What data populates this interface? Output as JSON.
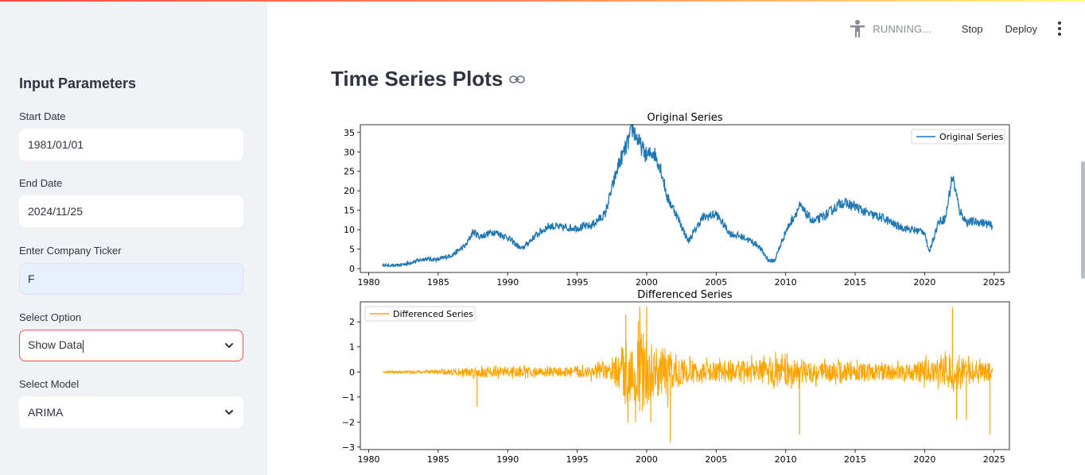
{
  "sidebar": {
    "title": "Input Parameters",
    "start_date": {
      "label": "Start Date",
      "value": "1981/01/01"
    },
    "end_date": {
      "label": "End Date",
      "value": "2024/11/25"
    },
    "ticker": {
      "label": "Enter Company Ticker",
      "value": "F"
    },
    "option": {
      "label": "Select Option",
      "value": "Show Data"
    },
    "model": {
      "label": "Select Model",
      "value": "ARIMA"
    }
  },
  "toolbar": {
    "status": "RUNNING...",
    "stop_label": "Stop",
    "deploy_label": "Deploy",
    "icons": [
      "running-person-icon",
      "kebab-menu-icon"
    ]
  },
  "main": {
    "title": "Time Series Plots",
    "title_icon": "link-icon"
  },
  "colors": {
    "accent": "#ff4b4b",
    "original": "#1f77b4",
    "differenced": "#ffa500"
  },
  "chart_data": [
    {
      "type": "line",
      "title": "Original Series",
      "legend": "top-right",
      "series": [
        {
          "name": "Original Series",
          "x": [
            1981,
            1982,
            1983,
            1984,
            1985,
            1986,
            1987,
            1987.5,
            1988,
            1989,
            1990,
            1991,
            1992,
            1993,
            1994,
            1995,
            1996,
            1997,
            1998,
            1998.5,
            1999,
            1999.5,
            2000,
            2000.5,
            2001,
            2001.5,
            2002,
            2003,
            2004,
            2005,
            2006,
            2007,
            2008,
            2008.8,
            2009.2,
            2010,
            2011,
            2012,
            2013,
            2014,
            2015,
            2016,
            2017,
            2018,
            2019,
            2020,
            2020.3,
            2021,
            2021.5,
            2022,
            2022.5,
            2023,
            2024,
            2024.9
          ],
          "y": [
            0.8,
            0.7,
            1.5,
            2.5,
            2.3,
            3.5,
            6,
            9.5,
            8.2,
            9.5,
            8,
            5,
            8.5,
            11,
            10.5,
            10.5,
            11,
            14,
            27,
            31,
            36,
            32,
            29,
            30,
            26,
            18,
            15,
            7,
            13,
            14,
            9,
            8,
            6,
            2,
            2,
            9.5,
            16,
            12,
            14,
            17,
            16,
            14,
            13,
            11,
            10,
            9.5,
            4,
            12,
            13,
            24,
            15,
            12,
            12,
            11
          ]
        }
      ],
      "xticks": [
        1980,
        1985,
        1990,
        1995,
        2000,
        2005,
        2010,
        2015,
        2020,
        2025
      ],
      "yticks": [
        0,
        5,
        10,
        15,
        20,
        25,
        30,
        35
      ],
      "xlim": [
        1979.4,
        2026.1
      ],
      "ylim": [
        -1,
        37
      ]
    },
    {
      "type": "line",
      "title": "Differenced Series",
      "legend": "top-left",
      "series": [
        {
          "name": "Differenced Series",
          "envelope": {
            "x": [
              1981,
              1984,
              1986,
              1988,
              1990,
              1994,
              1996,
              1997.5,
              1998,
              1998.5,
              1999,
              1999.5,
              2000,
              2000.5,
              2001,
              2001.5,
              2002,
              2004,
              2008,
              2009,
              2011,
              2015,
              2019,
              2020,
              2021,
              2022,
              2023,
              2024,
              2024.9
            ],
            "amp": [
              0.05,
              0.1,
              0.2,
              0.35,
              0.3,
              0.3,
              0.4,
              0.6,
              1.2,
              2.2,
              1.8,
              2.5,
              2.2,
              1.6,
              1.5,
              1.6,
              0.9,
              0.6,
              0.7,
              1.0,
              0.7,
              0.55,
              0.5,
              0.8,
              0.7,
              1.4,
              0.8,
              0.6,
              0.55
            ]
          },
          "spikes": [
            [
              1987.8,
              -1.4
            ],
            [
              1998.5,
              2.3
            ],
            [
              1999.5,
              2.6
            ],
            [
              2000,
              2.6
            ],
            [
              2001.7,
              -2.8
            ],
            [
              2011,
              -2.5
            ],
            [
              2022,
              2.6
            ],
            [
              2022.3,
              -1.9
            ],
            [
              2023,
              -1.9
            ],
            [
              2024.7,
              -2.5
            ],
            [
              1999.2,
              -2.0
            ],
            [
              2000.3,
              -2.0
            ]
          ]
        }
      ],
      "xticks": [
        1980,
        1985,
        1990,
        1995,
        2000,
        2005,
        2010,
        2015,
        2020,
        2025
      ],
      "yticks": [
        -3,
        -2,
        -1,
        0,
        1,
        2
      ],
      "xlim": [
        1979.4,
        2026.1
      ],
      "ylim": [
        -3.1,
        2.8
      ]
    }
  ]
}
